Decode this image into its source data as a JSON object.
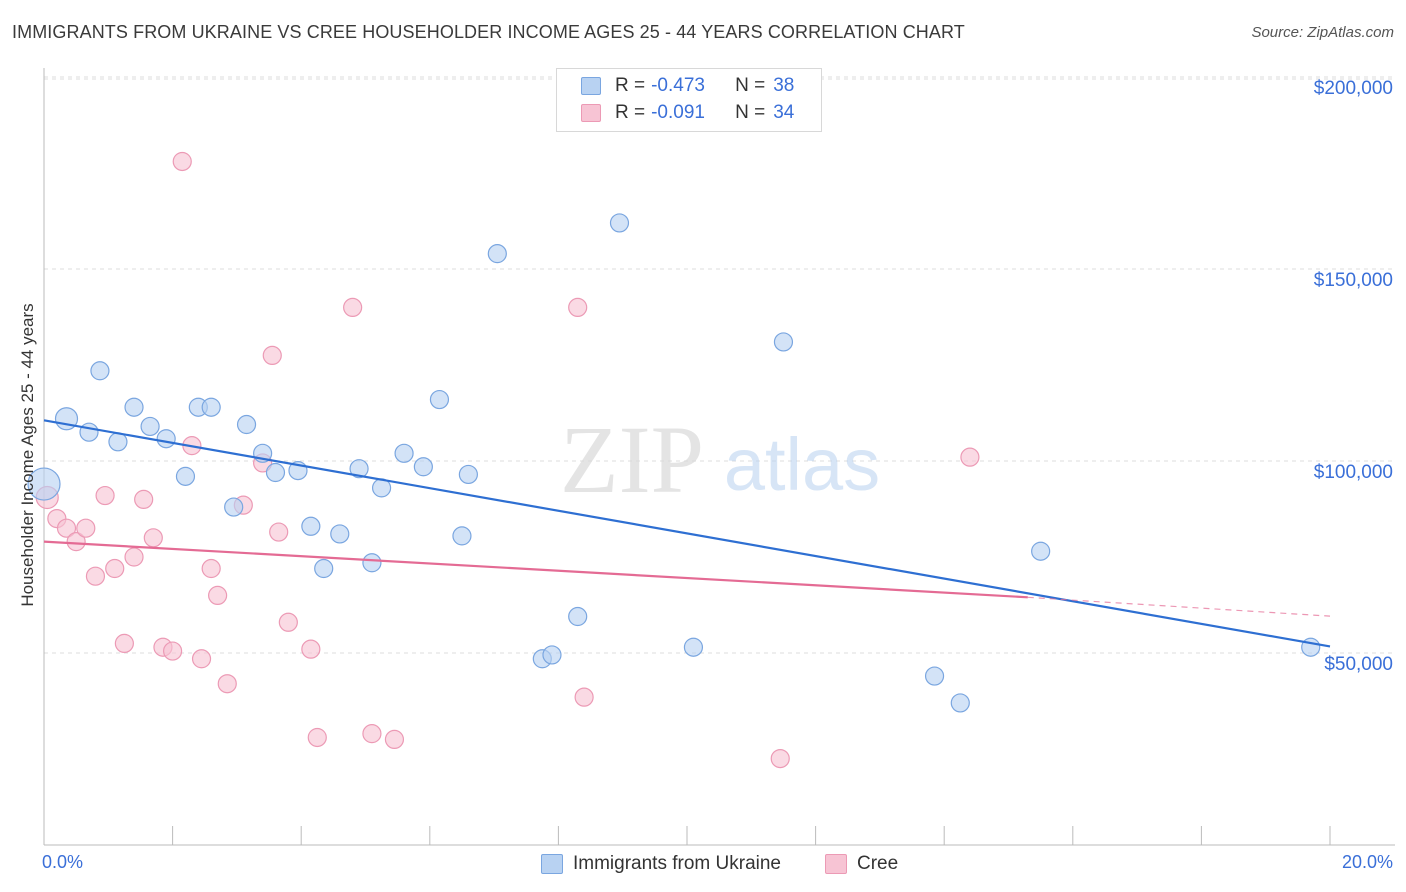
{
  "header": {
    "title": "IMMIGRANTS FROM UKRAINE VS CREE HOUSEHOLDER INCOME AGES 25 - 44 YEARS CORRELATION CHART",
    "source": "Source: ZipAtlas.com"
  },
  "watermark": {
    "zip": "ZIP",
    "atlas": "atlas"
  },
  "legend": {
    "rows": [
      {
        "r_label": "R =",
        "r_value": "-0.473",
        "n_label": "N =",
        "n_value": "38"
      },
      {
        "r_label": "R =",
        "r_value": "-0.091",
        "n_label": "N =",
        "n_value": "34"
      }
    ]
  },
  "bottom_legend": {
    "series1": "Immigrants from Ukraine",
    "series2": "Cree"
  },
  "colors": {
    "blue_fill": "#b8d2f2",
    "blue_stroke": "#7aa6e0",
    "blue_line": "#2e6fd2",
    "pink_fill": "#f7c4d4",
    "pink_stroke": "#ec9ab5",
    "pink_line": "#e46b94",
    "tick_text": "#3a6fd8",
    "grid": "#dcdcdc"
  },
  "chart_data": {
    "type": "scatter",
    "xlabel": "",
    "ylabel": "Householder Income Ages 25 - 44 years",
    "xlim": [
      0,
      20
    ],
    "ylim": [
      0,
      200000
    ],
    "x_tick_labels": [
      "0.0%",
      "20.0%"
    ],
    "y_ticks": [
      {
        "value": 50000,
        "label": "$50,000"
      },
      {
        "value": 100000,
        "label": "$100,000"
      },
      {
        "value": 150000,
        "label": "$150,000"
      },
      {
        "value": 200000,
        "label": "$200,000"
      }
    ],
    "grid": true,
    "series": [
      {
        "name": "Immigrants from Ukraine",
        "color": "#b8d2f2",
        "trend": {
          "x": [
            0,
            20
          ],
          "y": [
            110600,
            51700
          ]
        },
        "points": [
          [
            0.0,
            94000,
            16
          ],
          [
            0.35,
            111000,
            11
          ],
          [
            0.7,
            107500,
            9
          ],
          [
            0.87,
            123500,
            9
          ],
          [
            1.15,
            105000,
            9
          ],
          [
            1.4,
            114000,
            9
          ],
          [
            1.65,
            109000,
            9
          ],
          [
            1.9,
            105800,
            9
          ],
          [
            2.2,
            96000,
            9
          ],
          [
            2.4,
            114000,
            9
          ],
          [
            2.6,
            114000,
            9
          ],
          [
            2.95,
            88000,
            9
          ],
          [
            3.15,
            109500,
            9
          ],
          [
            3.4,
            102000,
            9
          ],
          [
            3.6,
            97000,
            9
          ],
          [
            3.95,
            97500,
            9
          ],
          [
            4.15,
            83000,
            9
          ],
          [
            4.35,
            72000,
            9
          ],
          [
            4.6,
            81000,
            9
          ],
          [
            4.9,
            98000,
            9
          ],
          [
            5.1,
            73500,
            9
          ],
          [
            5.25,
            93000,
            9
          ],
          [
            5.6,
            102000,
            9
          ],
          [
            5.9,
            98500,
            9
          ],
          [
            6.15,
            116000,
            9
          ],
          [
            6.5,
            80500,
            9
          ],
          [
            6.6,
            96500,
            9
          ],
          [
            7.05,
            154000,
            9
          ],
          [
            7.75,
            48500,
            9
          ],
          [
            7.9,
            49500,
            9
          ],
          [
            8.3,
            59500,
            9
          ],
          [
            8.95,
            162000,
            9
          ],
          [
            10.1,
            51500,
            9
          ],
          [
            11.5,
            131000,
            9
          ],
          [
            13.85,
            44000,
            9
          ],
          [
            14.25,
            37000,
            9
          ],
          [
            15.5,
            76500,
            9
          ],
          [
            19.7,
            51500,
            9
          ]
        ]
      },
      {
        "name": "Cree",
        "color": "#f7c4d4",
        "trend": {
          "x": [
            0,
            15.3
          ],
          "y": [
            79000,
            64500
          ],
          "dashed_x": [
            15.3,
            20
          ],
          "dashed_y": [
            64500,
            59600
          ]
        },
        "points": [
          [
            0.05,
            90500,
            11
          ],
          [
            0.2,
            85000,
            9
          ],
          [
            0.35,
            82500,
            9
          ],
          [
            0.5,
            79000,
            9
          ],
          [
            0.65,
            82500,
            9
          ],
          [
            0.8,
            70000,
            9
          ],
          [
            0.95,
            91000,
            9
          ],
          [
            1.1,
            72000,
            9
          ],
          [
            1.25,
            52500,
            9
          ],
          [
            1.4,
            75000,
            9
          ],
          [
            1.55,
            90000,
            9
          ],
          [
            1.7,
            80000,
            9
          ],
          [
            1.85,
            51500,
            9
          ],
          [
            2.0,
            50500,
            9
          ],
          [
            2.15,
            178000,
            9
          ],
          [
            2.3,
            104000,
            9
          ],
          [
            2.45,
            48500,
            9
          ],
          [
            2.6,
            72000,
            9
          ],
          [
            2.7,
            65000,
            9
          ],
          [
            2.85,
            42000,
            9
          ],
          [
            3.1,
            88500,
            9
          ],
          [
            3.4,
            99500,
            9
          ],
          [
            3.55,
            127500,
            9
          ],
          [
            3.65,
            81500,
            9
          ],
          [
            3.8,
            58000,
            9
          ],
          [
            4.15,
            51000,
            9
          ],
          [
            4.25,
            28000,
            9
          ],
          [
            4.8,
            140000,
            9
          ],
          [
            5.1,
            29000,
            9
          ],
          [
            5.45,
            27500,
            9
          ],
          [
            8.3,
            140000,
            9
          ],
          [
            8.4,
            38500,
            9
          ],
          [
            11.45,
            22500,
            9
          ],
          [
            14.4,
            101000,
            9
          ]
        ]
      }
    ]
  }
}
